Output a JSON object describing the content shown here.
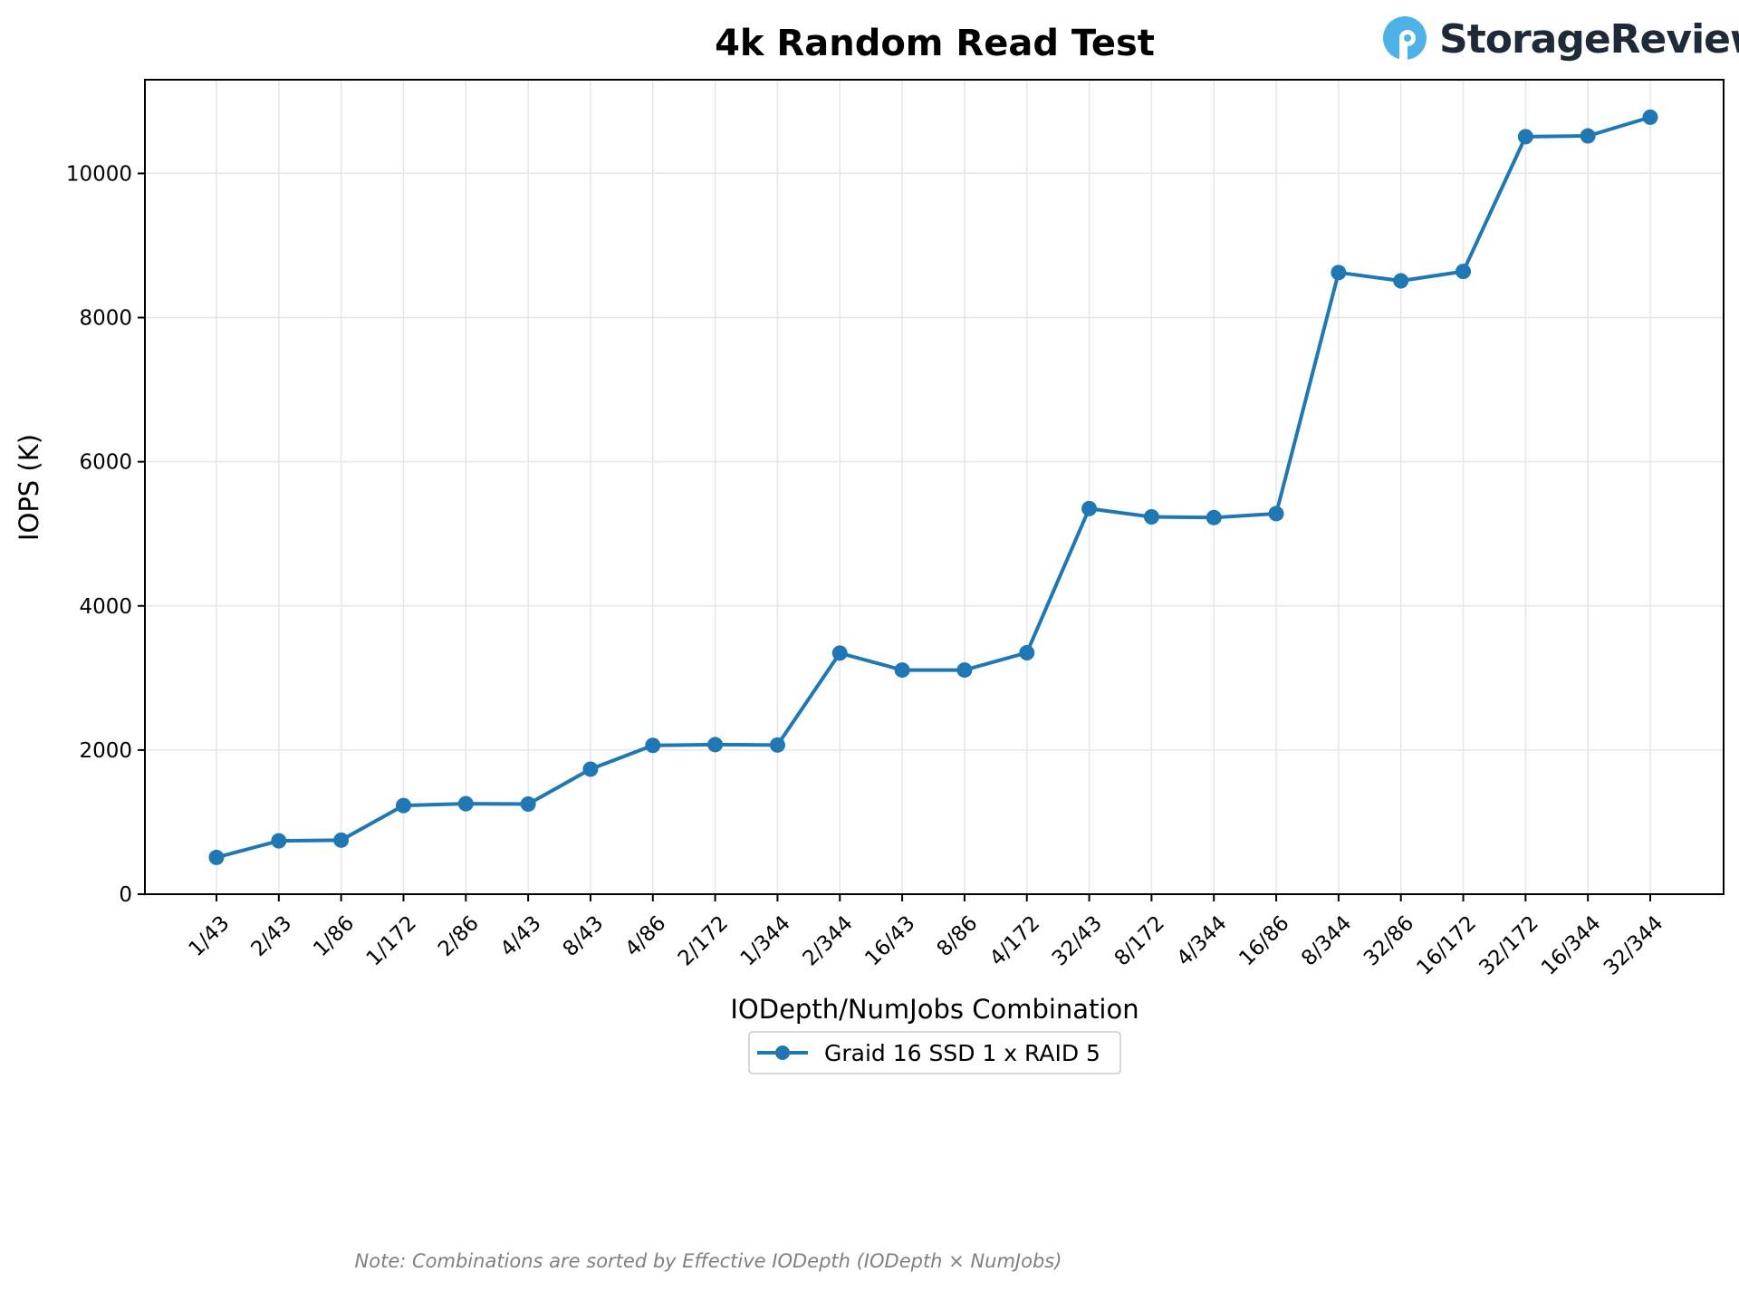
{
  "chart_data": {
    "type": "line",
    "title": "4k Random Read Test",
    "xlabel": "IODepth/NumJobs Combination",
    "ylabel": "IOPS (K)",
    "categories": [
      "1/43",
      "2/43",
      "1/86",
      "1/172",
      "2/86",
      "4/43",
      "8/43",
      "4/86",
      "2/172",
      "1/344",
      "2/344",
      "16/43",
      "8/86",
      "4/172",
      "32/43",
      "8/172",
      "4/344",
      "16/86",
      "8/344",
      "32/86",
      "16/172",
      "32/172",
      "16/344",
      "32/344"
    ],
    "series": [
      {
        "name": "Graid 16 SSD 1 x RAID 5",
        "color": "#1f77b4",
        "values": [
          510,
          740,
          750,
          1230,
          1255,
          1250,
          1735,
          2065,
          2075,
          2070,
          3345,
          3110,
          3110,
          3350,
          5350,
          5235,
          5225,
          5280,
          8625,
          8510,
          8640,
          10510,
          10520,
          10780
        ]
      }
    ],
    "ylim": [
      0,
      11300
    ],
    "yticks": [
      0,
      2000,
      4000,
      6000,
      8000,
      10000
    ],
    "grid": true,
    "legend_position": "bottom-center",
    "note": "Note: Combinations are sorted by Effective IODepth (IODepth × NumJobs)"
  },
  "brand": {
    "name": "StorageReview",
    "icon": "storagereview-logo-icon",
    "icon_color": "#4db3e6",
    "text_color": "#1e2a38"
  }
}
